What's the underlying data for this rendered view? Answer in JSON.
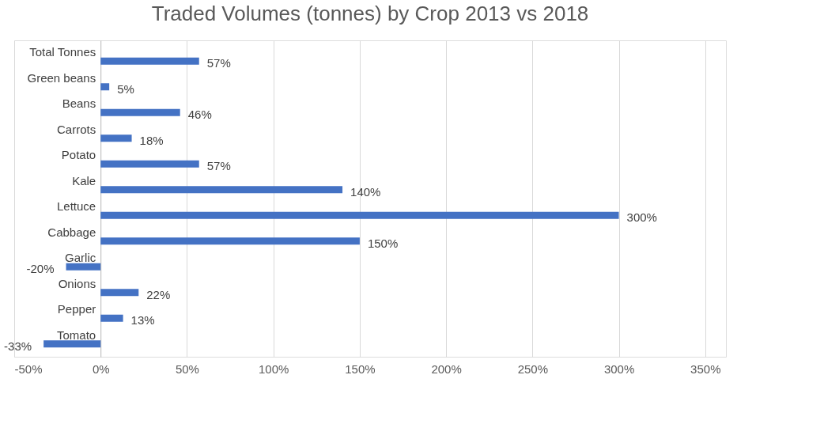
{
  "chart_data": {
    "type": "bar",
    "orientation": "horizontal",
    "title": "Traded Volumes (tonnes) by Crop 2013 vs 2018",
    "categories": [
      "Total Tonnes",
      "Green beans",
      "Beans",
      "Carrots",
      "Potato",
      "Kale",
      "Lettuce",
      "Cabbage",
      "Garlic",
      "Onions",
      "Pepper",
      "Tomato"
    ],
    "values": [
      57,
      5,
      46,
      18,
      57,
      140,
      300,
      150,
      -20,
      22,
      13,
      -33
    ],
    "value_labels": [
      "57%",
      "5%",
      "46%",
      "18%",
      "57%",
      "140%",
      "300%",
      "150%",
      "-20%",
      "22%",
      "13%",
      "-33%"
    ],
    "color": "#4472c4",
    "xlim": [
      -50,
      362
    ],
    "xticks": [
      {
        "value": -50,
        "label": "-50%"
      },
      {
        "value": 0,
        "label": "0%"
      },
      {
        "value": 50,
        "label": "50%"
      },
      {
        "value": 100,
        "label": "100%"
      },
      {
        "value": 150,
        "label": "150%"
      },
      {
        "value": 200,
        "label": "200%"
      },
      {
        "value": 250,
        "label": "250%"
      },
      {
        "value": 300,
        "label": "300%"
      },
      {
        "value": 350,
        "label": "350%"
      }
    ],
    "grid": "x"
  }
}
